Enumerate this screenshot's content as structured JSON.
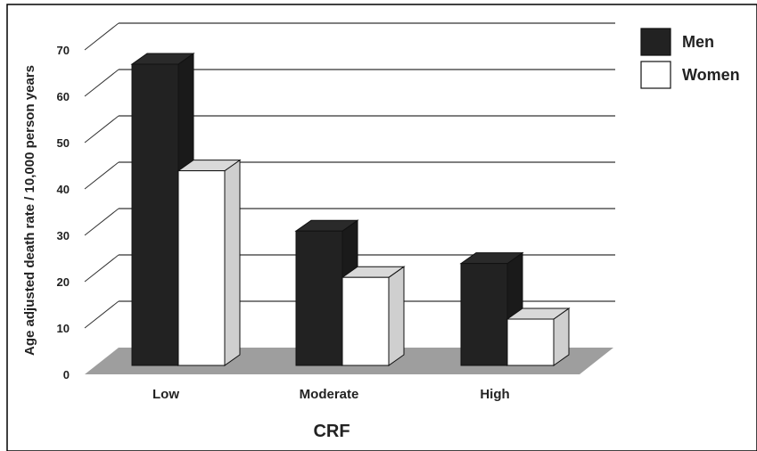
{
  "chart_data": {
    "type": "bar",
    "title": "",
    "xlabel": "CRF",
    "ylabel": "Age adjusted death rate / 10,000 person years",
    "categories": [
      "Low",
      "Moderate",
      "High"
    ],
    "ylim": [
      0,
      70
    ],
    "yticks": [
      0,
      10,
      20,
      30,
      40,
      50,
      60,
      70
    ],
    "grid": true,
    "legend_position": "top-right",
    "series": [
      {
        "name": "Men",
        "values": [
          65,
          29,
          22
        ],
        "color": "#222222"
      },
      {
        "name": "Women",
        "values": [
          42,
          19,
          10
        ],
        "color": "#ffffff"
      }
    ],
    "colors": {
      "floor": "#9e9e9e",
      "side_dark": "#1a1a1a",
      "side_light": "#cfcfcf",
      "grid": "#333333"
    }
  }
}
